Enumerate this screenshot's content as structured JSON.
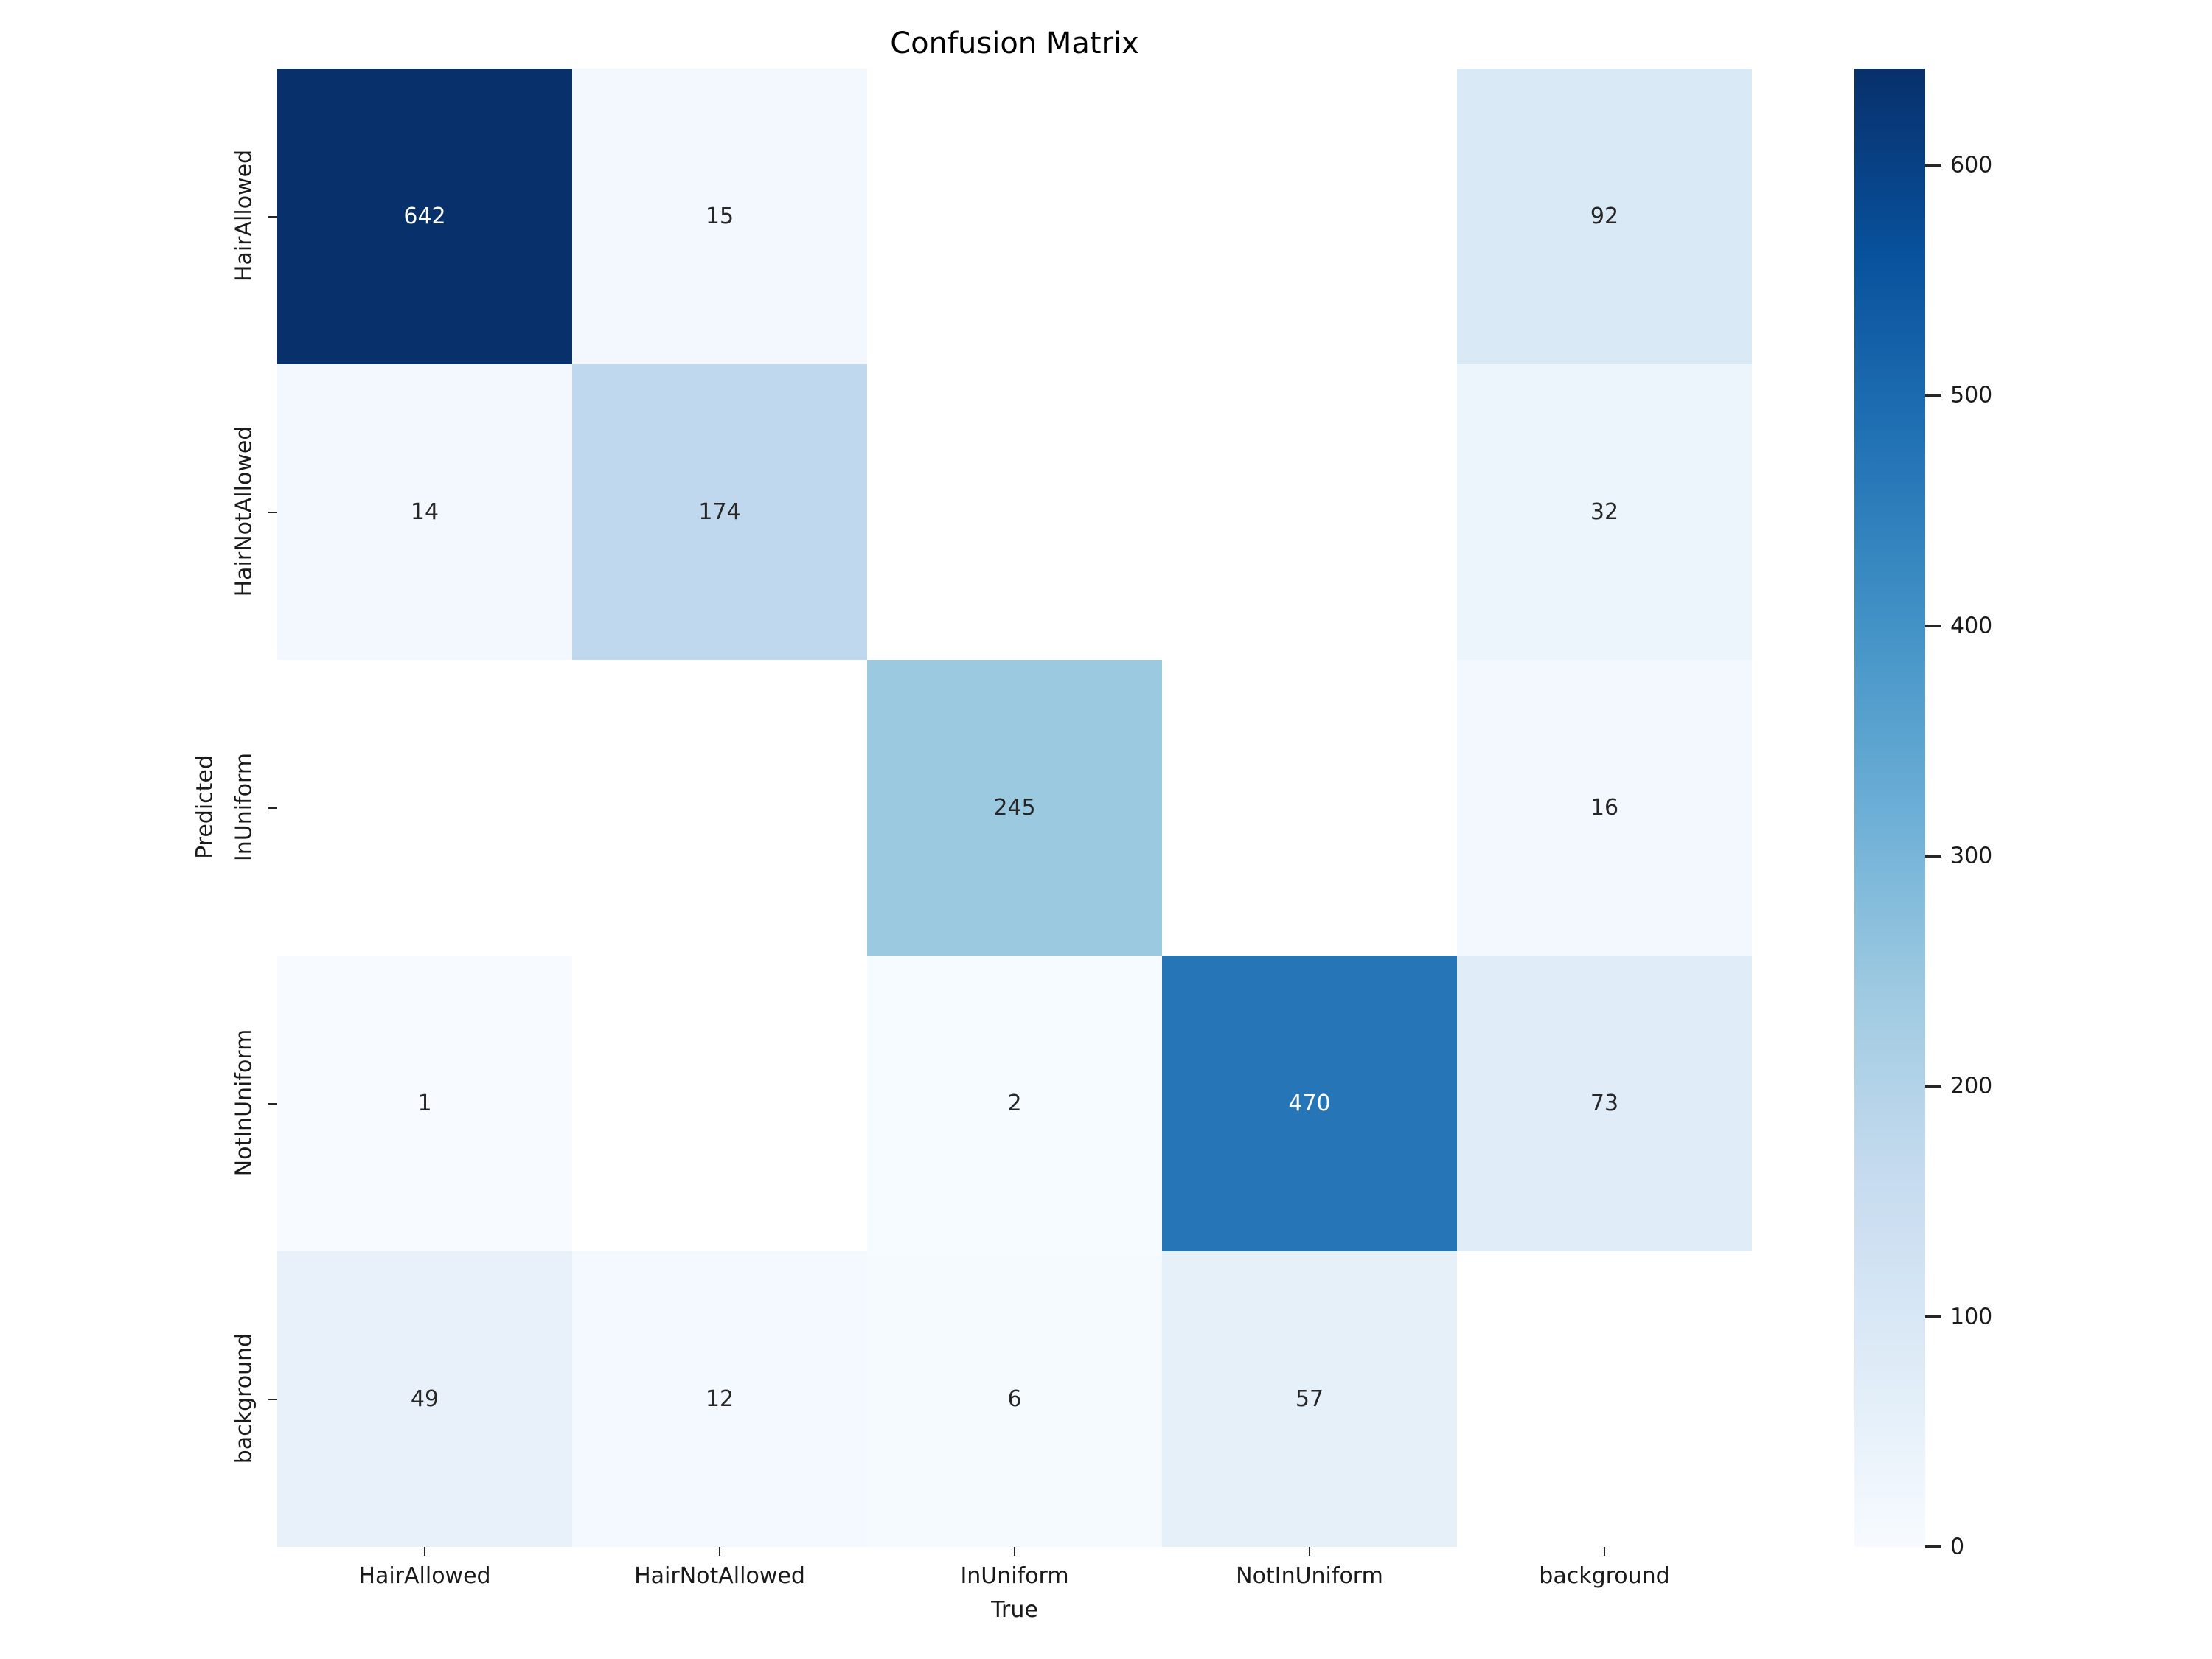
{
  "chart_data": {
    "type": "heatmap",
    "title": "Confusion Matrix",
    "xlabel": "True",
    "ylabel": "Predicted",
    "x_categories": [
      "HairAllowed",
      "HairNotAllowed",
      "InUniform",
      "NotInUniform",
      "background"
    ],
    "y_categories": [
      "HairAllowed",
      "HairNotAllowed",
      "InUniform",
      "NotInUniform",
      "background"
    ],
    "values": [
      [
        642,
        15,
        null,
        null,
        92
      ],
      [
        14,
        174,
        null,
        null,
        32
      ],
      [
        null,
        null,
        245,
        null,
        16
      ],
      [
        1,
        null,
        2,
        470,
        73
      ],
      [
        49,
        12,
        6,
        57,
        null
      ]
    ],
    "vmin": 0,
    "vmax": 642,
    "colormap": "Blues",
    "colorbar_ticks": [
      0,
      100,
      200,
      300,
      400,
      500,
      600
    ],
    "legend_position": "right-colorbar",
    "grid": false,
    "empty_cell_color": "#ffffff",
    "annotation_dark_text_color": "#262626",
    "annotation_light_text_color": "#ffffff",
    "max_cell_color": "#08306b",
    "min_cell_color": "#f7fbff"
  }
}
